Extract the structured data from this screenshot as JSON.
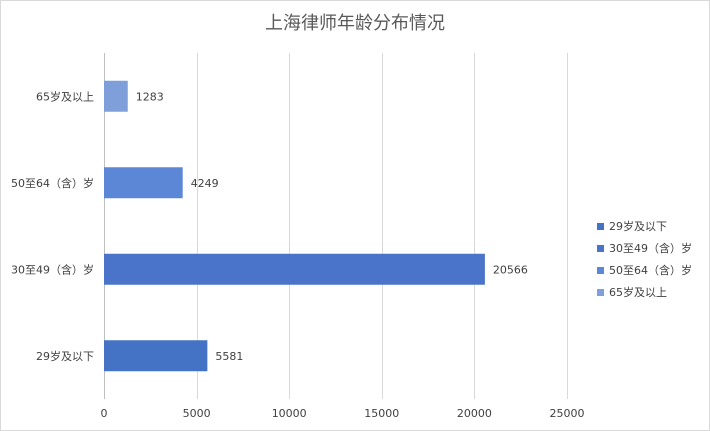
{
  "chart_data": {
    "type": "bar",
    "orientation": "horizontal",
    "title": "上海律师年龄分布情况",
    "categories": [
      "29岁及以下",
      "30至49（含）岁",
      "50至64（含）岁",
      "65岁及以上"
    ],
    "values": [
      5581,
      20566,
      4249,
      1283
    ],
    "colors": [
      "#4472c4",
      "#4a74c9",
      "#5b87d6",
      "#7f9fdb"
    ],
    "xlim": [
      0,
      25000
    ],
    "xticks": [
      0,
      5000,
      10000,
      15000,
      20000,
      25000
    ],
    "grid": true,
    "legend": {
      "position": "right",
      "entries": [
        "29岁及以下",
        "30至49（含）岁",
        "50至64（含）岁",
        "65岁及以上"
      ]
    },
    "xlabel": "",
    "ylabel": ""
  }
}
